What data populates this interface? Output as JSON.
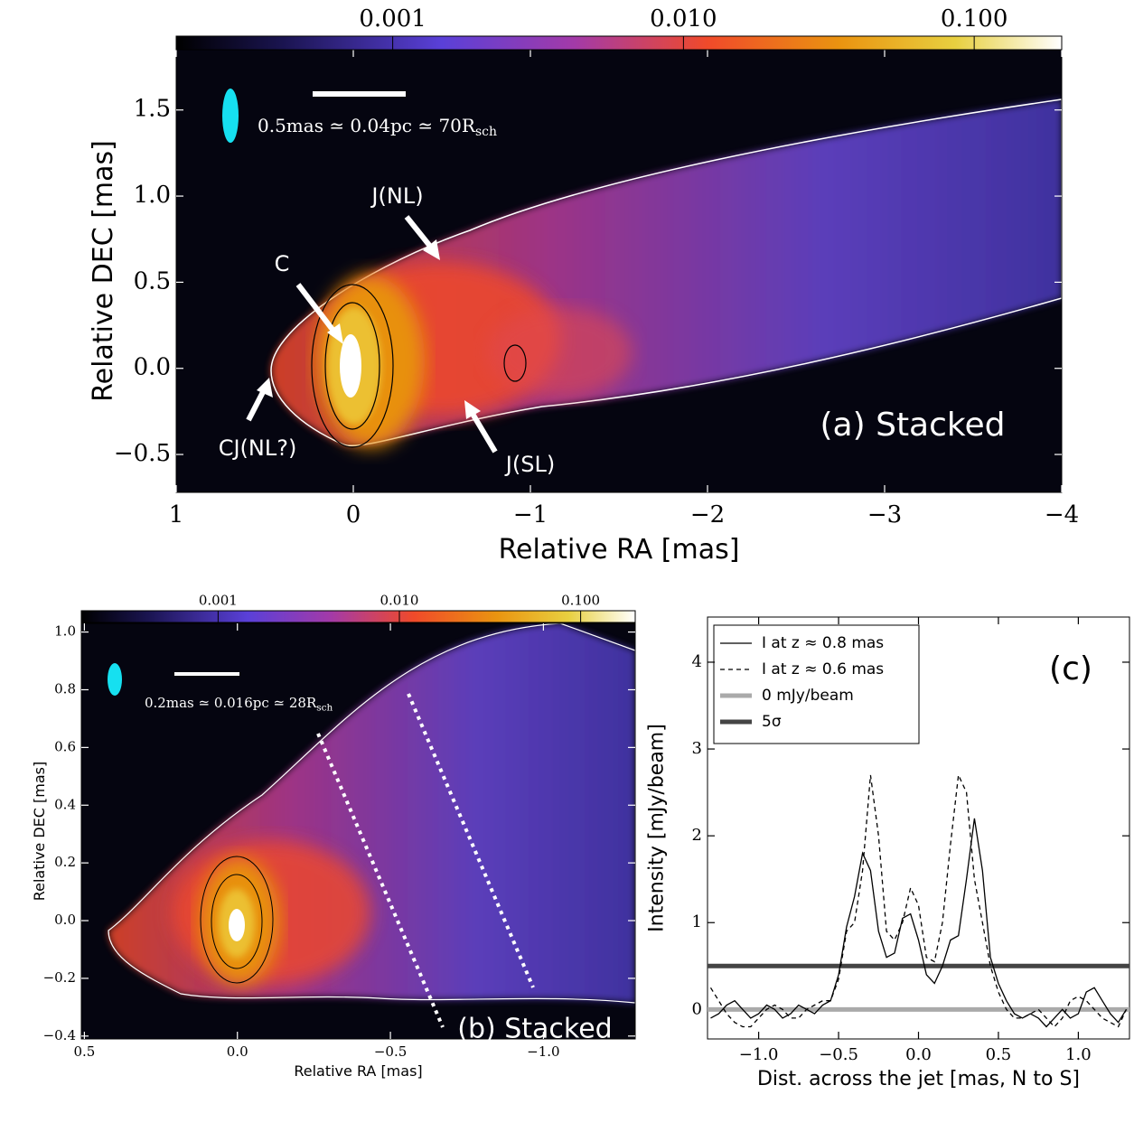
{
  "chart_data": [
    {
      "type": "image",
      "title": "(a) Stacked",
      "xlabel": "Relative RA [mas]",
      "ylabel": "Relative DEC [mas]",
      "xlim": [
        1,
        -4
      ],
      "ylim": [
        -0.72,
        1.85
      ],
      "xticks": [
        1,
        0,
        {
          "value": -1,
          "label": "−1"
        },
        {
          "value": -2,
          "label": "−2"
        },
        {
          "value": -3,
          "label": "−3"
        },
        {
          "value": -4,
          "label": "−4"
        }
      ],
      "yticks": [
        {
          "value": -0.5,
          "label": "−0.5"
        },
        {
          "value": 0,
          "label": "0.0"
        },
        0.5,
        {
          "value": 1,
          "label": "1.0"
        },
        1.5
      ],
      "colorbar": {
        "lim": [
          0.00018,
          0.2
        ],
        "log": true,
        "ticks": [
          0.001,
          {
            "value": 0.01,
            "label": "0.010"
          },
          {
            "value": 0.1,
            "label": "0.100"
          }
        ]
      },
      "scale_label": "0.5mas ≃ 0.04pc ≃ 70R",
      "scale_label_sub": "sch",
      "annotations": [
        "C",
        "J(NL)",
        "CJ(NL?)",
        "J(SL)"
      ]
    },
    {
      "type": "image",
      "title": "(b) Stacked",
      "xlabel": "Relative RA [mas]",
      "ylabel": "Relative DEC [mas]",
      "xlim": [
        0.51,
        -1.3
      ],
      "ylim": [
        -0.41,
        1.03
      ],
      "xticks": [
        0.5,
        {
          "value": 0,
          "label": "0.0"
        },
        {
          "value": -0.5,
          "label": "−0.5"
        },
        {
          "value": -1,
          "label": "−1.0"
        }
      ],
      "yticks": [
        {
          "value": -0.4,
          "label": "−0.4"
        },
        {
          "value": -0.2,
          "label": "−0.2"
        },
        {
          "value": 0,
          "label": "0.0"
        },
        0.2,
        0.4,
        0.6,
        0.8,
        {
          "value": 1,
          "label": "1.0"
        }
      ],
      "colorbar": {
        "lim": [
          0.000176,
          0.2
        ],
        "log": true,
        "ticks": [
          0.001,
          {
            "value": 0.01,
            "label": "0.010"
          },
          {
            "value": 0.1,
            "label": "0.100"
          }
        ]
      },
      "scale_label": "0.2mas ≃ 0.016pc ≃ 28R",
      "scale_label_sub": "sch",
      "annotations": []
    },
    {
      "type": "line",
      "title": "(c)",
      "xlabel": "Dist. across the jet [mas, N to S]",
      "ylabel": "Intensity [mJy/beam]",
      "xlim": [
        -1.32,
        1.32
      ],
      "ylim": [
        -0.34,
        4.52
      ],
      "xticks": [
        {
          "value": -1,
          "label": "−1.0"
        },
        {
          "value": -0.5,
          "label": "−0.5"
        },
        {
          "value": 0,
          "label": "0.0"
        },
        0.5,
        {
          "value": 1,
          "label": "1.0"
        }
      ],
      "yticks": [
        0,
        1,
        2,
        3,
        4
      ],
      "x": [
        -1.3,
        -1.25,
        -1.2,
        -1.15,
        -1.1,
        -1.05,
        -1.0,
        -0.95,
        -0.9,
        -0.85,
        -0.8,
        -0.75,
        -0.7,
        -0.65,
        -0.6,
        -0.55,
        -0.5,
        -0.45,
        -0.4,
        -0.35,
        -0.3,
        -0.25,
        -0.2,
        -0.15,
        -0.1,
        -0.05,
        0,
        0.05,
        0.1,
        0.15,
        0.2,
        0.25,
        0.3,
        0.35,
        0.4,
        0.45,
        0.5,
        0.55,
        0.6,
        0.65,
        0.7,
        0.75,
        0.8,
        0.85,
        0.9,
        0.95,
        1.0,
        1.05,
        1.1,
        1.15,
        1.2,
        1.25,
        1.3
      ],
      "series": [
        {
          "name": "I at z ≈ 0.8 mas",
          "color": "#000000",
          "dash": false,
          "values": [
            -0.1,
            -0.05,
            0.05,
            0.1,
            0,
            -0.1,
            -0.05,
            0.05,
            0,
            -0.1,
            -0.05,
            0.05,
            0,
            -0.05,
            0.05,
            0.1,
            0.4,
            0.95,
            1.3,
            1.8,
            1.6,
            0.9,
            0.6,
            0.65,
            1.05,
            1.1,
            0.8,
            0.4,
            0.3,
            0.5,
            0.8,
            0.85,
            1.5,
            2.2,
            1.6,
            0.6,
            0.3,
            0.1,
            -0.05,
            -0.1,
            -0.05,
            -0.1,
            -0.2,
            -0.1,
            0,
            -0.1,
            -0.05,
            0.2,
            0.25,
            0.1,
            -0.05,
            -0.15,
            0
          ]
        },
        {
          "name": "I at z ≈ 0.6 mas",
          "color": "#000000",
          "dash": true,
          "values": [
            0.25,
            0.1,
            -0.05,
            -0.15,
            -0.2,
            -0.2,
            -0.1,
            0,
            0.05,
            0,
            -0.1,
            -0.1,
            0,
            0.05,
            0.1,
            0.1,
            0.35,
            0.9,
            1.0,
            1.6,
            2.7,
            2.0,
            0.9,
            0.8,
            1.0,
            1.4,
            1.2,
            0.6,
            0.55,
            1.0,
            1.9,
            2.7,
            2.5,
            1.5,
            1.0,
            0.5,
            0.2,
            0,
            -0.1,
            -0.1,
            -0.05,
            0,
            -0.1,
            -0.2,
            -0.1,
            0.1,
            0.15,
            0.1,
            0,
            -0.1,
            -0.15,
            -0.2,
            0
          ]
        }
      ],
      "hlines": [
        {
          "name": "0 mJy/beam",
          "color": "#aaaaaa",
          "value": 0
        },
        {
          "name": "5σ",
          "color": "#444444",
          "value": 0.5
        }
      ]
    }
  ]
}
